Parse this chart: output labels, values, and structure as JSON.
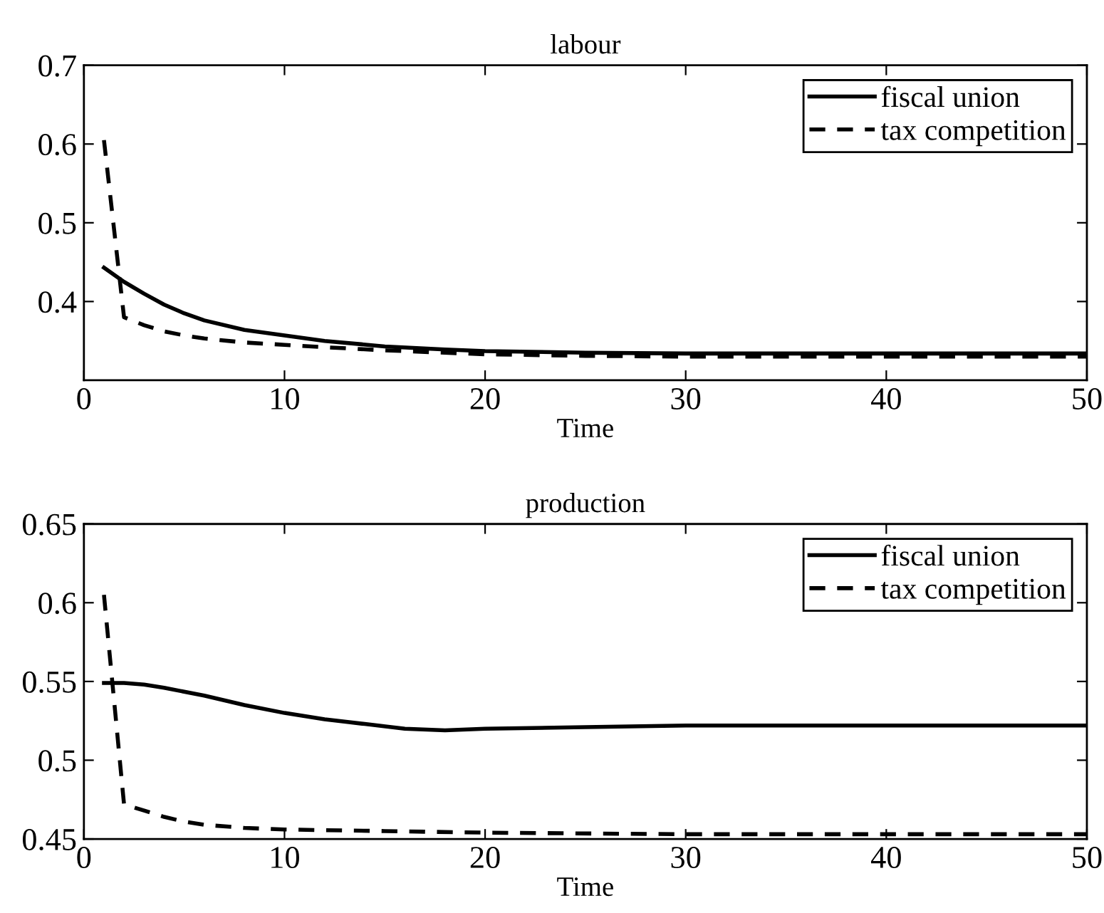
{
  "chart_data": [
    {
      "type": "line",
      "title": "labour",
      "xlabel": "Time",
      "xlim": [
        0,
        50
      ],
      "xticks": [
        0,
        10,
        20,
        30,
        40,
        50
      ],
      "ylim": [
        0.3,
        0.7
      ],
      "yticks": [
        0.4,
        0.5,
        0.6,
        0.7
      ],
      "legend": "top right",
      "marker": "none",
      "series": [
        {
          "name": "fiscal union",
          "color": "#000000",
          "line_style": "solid",
          "x": [
            1,
            2,
            3,
            4,
            5,
            6,
            8,
            10,
            12,
            15,
            18,
            20,
            25,
            30,
            40,
            50
          ],
          "values": [
            0.443,
            0.425,
            0.41,
            0.396,
            0.385,
            0.376,
            0.364,
            0.357,
            0.35,
            0.343,
            0.339,
            0.337,
            0.335,
            0.334,
            0.334,
            0.334
          ]
        },
        {
          "name": "tax competition",
          "color": "#000000",
          "line_style": "dashed",
          "x": [
            1,
            2,
            3,
            4,
            5,
            6,
            8,
            10,
            12,
            15,
            20,
            25,
            30,
            40,
            50
          ],
          "values": [
            0.605,
            0.38,
            0.37,
            0.362,
            0.357,
            0.353,
            0.348,
            0.345,
            0.342,
            0.338,
            0.333,
            0.331,
            0.33,
            0.33,
            0.33
          ]
        }
      ]
    },
    {
      "type": "line",
      "title": "production",
      "xlabel": "Time",
      "xlim": [
        0,
        50
      ],
      "xticks": [
        0,
        10,
        20,
        30,
        40,
        50
      ],
      "ylim": [
        0.45,
        0.65
      ],
      "yticks": [
        0.45,
        0.5,
        0.55,
        0.6,
        0.65
      ],
      "legend": "top right",
      "marker": "none",
      "series": [
        {
          "name": "fiscal union",
          "color": "#000000",
          "line_style": "solid",
          "x": [
            1,
            2,
            3,
            4,
            6,
            8,
            10,
            12,
            14,
            16,
            18,
            20,
            25,
            30,
            40,
            50
          ],
          "values": [
            0.549,
            0.549,
            0.548,
            0.546,
            0.541,
            0.535,
            0.53,
            0.526,
            0.523,
            0.52,
            0.519,
            0.52,
            0.521,
            0.522,
            0.522,
            0.522
          ]
        },
        {
          "name": "tax competition",
          "color": "#000000",
          "line_style": "dashed",
          "x": [
            1,
            2,
            3,
            4,
            5,
            6,
            8,
            10,
            15,
            20,
            30,
            40,
            50
          ],
          "values": [
            0.605,
            0.472,
            0.468,
            0.464,
            0.461,
            0.459,
            0.457,
            0.456,
            0.455,
            0.454,
            0.453,
            0.453,
            0.453
          ]
        }
      ]
    }
  ]
}
